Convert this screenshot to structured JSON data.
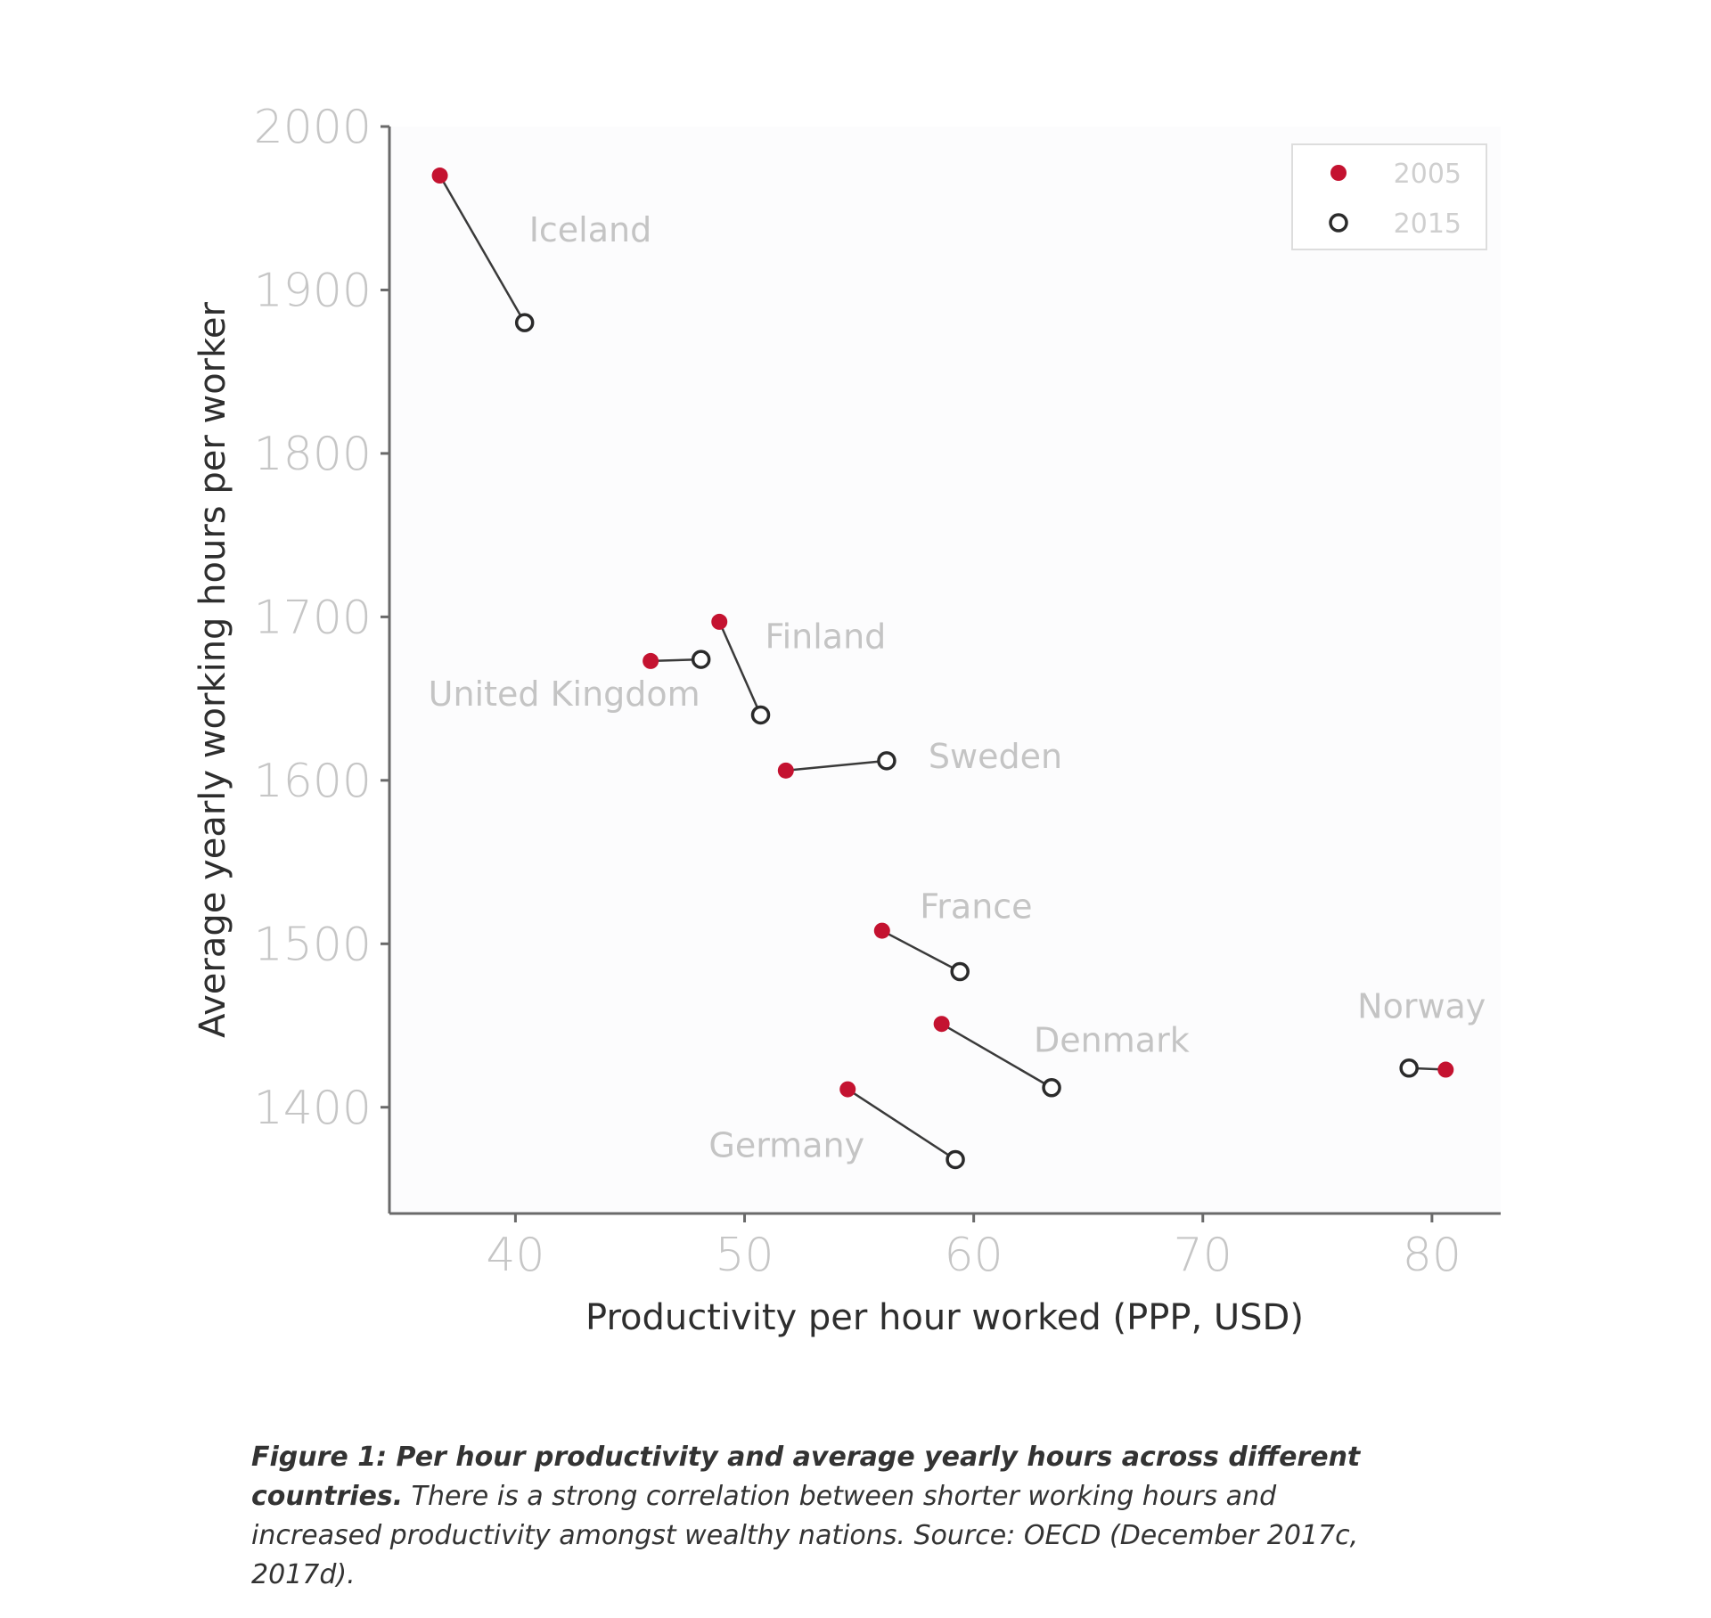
{
  "chart_data": {
    "type": "scatter",
    "xlabel": "Productivity per hour worked (PPP, USD)",
    "ylabel": "Average yearly working hours per worker",
    "xlim": [
      34.5,
      83
    ],
    "ylim": [
      1335,
      2000
    ],
    "xticks": [
      40,
      50,
      60,
      70,
      80
    ],
    "yticks": [
      1400,
      1500,
      1600,
      1700,
      1800,
      1900,
      2000
    ],
    "x_tick_labels": [
      "40",
      "50",
      "60",
      "70",
      "80"
    ],
    "y_tick_labels": [
      "1400",
      "1500",
      "1600",
      "1700",
      "1800",
      "1900",
      "2000"
    ],
    "grid": false,
    "legend_position": "top-right",
    "series": [
      {
        "name": "2005",
        "color": "#c41230",
        "marker": "filled-circle"
      },
      {
        "name": "2015",
        "color": "#2b2b2b",
        "marker": "open-circle"
      }
    ],
    "countries": [
      {
        "name": "Iceland",
        "x2005": 36.7,
        "y2005": 1970,
        "x2015": 40.4,
        "y2015": 1880
      },
      {
        "name": "Finland",
        "x2005": 48.9,
        "y2005": 1697,
        "x2015": 50.7,
        "y2015": 1640
      },
      {
        "name": "United Kingdom",
        "x2005": 45.9,
        "y2005": 1673,
        "x2015": 48.1,
        "y2015": 1674
      },
      {
        "name": "Sweden",
        "x2005": 51.8,
        "y2005": 1606,
        "x2015": 56.2,
        "y2015": 1612
      },
      {
        "name": "France",
        "x2005": 56.0,
        "y2005": 1508,
        "x2015": 59.4,
        "y2015": 1483
      },
      {
        "name": "Denmark",
        "x2005": 58.6,
        "y2005": 1451,
        "x2015": 63.4,
        "y2015": 1412
      },
      {
        "name": "Germany",
        "x2005": 54.5,
        "y2005": 1411,
        "x2015": 59.2,
        "y2015": 1368
      },
      {
        "name": "Norway",
        "x2005": 80.6,
        "y2005": 1423,
        "x2015": 79.0,
        "y2015": 1424
      }
    ]
  },
  "caption": {
    "lead": "Figure 1: Per hour productivity and average yearly hours across different countries.",
    "body": " There is a strong correlation between shorter working hours and increased productivity amongst wealthy nations. Source: OECD (December 2017c, 2017d)."
  }
}
